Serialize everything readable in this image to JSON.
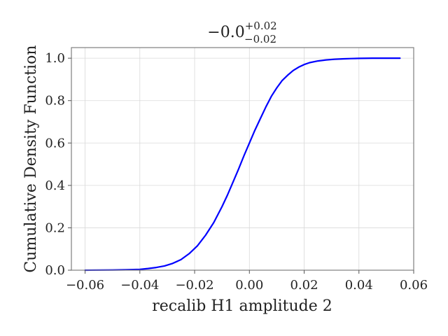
{
  "chart_data": {
    "type": "line",
    "title": {
      "base": "−0.0",
      "sup": "+0.02",
      "sub": "−0.02"
    },
    "xlabel": "recalib H1 amplitude 2",
    "ylabel": "Cumulative Density Function",
    "xlim": [
      -0.065,
      0.06
    ],
    "ylim": [
      0.0,
      1.05
    ],
    "grid": true,
    "x_ticks": [
      -0.06,
      -0.04,
      -0.02,
      0.0,
      0.02,
      0.04,
      0.06
    ],
    "x_tick_labels": [
      "−0.06",
      "−0.04",
      "−0.02",
      "0.00",
      "0.02",
      "0.04",
      "0.06"
    ],
    "y_ticks": [
      0.0,
      0.2,
      0.4,
      0.6,
      0.8,
      1.0
    ],
    "y_tick_labels": [
      "0.0",
      "0.2",
      "0.4",
      "0.6",
      "0.8",
      "1.0"
    ],
    "series": [
      {
        "color": "#0000ff",
        "x": [
          -0.06,
          -0.05,
          -0.045,
          -0.04,
          -0.037,
          -0.034,
          -0.031,
          -0.028,
          -0.025,
          -0.022,
          -0.019,
          -0.016,
          -0.013,
          -0.01,
          -0.008,
          -0.006,
          -0.004,
          -0.002,
          0.0,
          0.002,
          0.004,
          0.006,
          0.008,
          0.01,
          0.012,
          0.014,
          0.016,
          0.018,
          0.02,
          0.022,
          0.025,
          0.028,
          0.031,
          0.034,
          0.037,
          0.04,
          0.045,
          0.05,
          0.055
        ],
        "y": [
          0.0,
          0.001,
          0.002,
          0.004,
          0.008,
          0.013,
          0.02,
          0.032,
          0.05,
          0.078,
          0.115,
          0.165,
          0.225,
          0.3,
          0.355,
          0.415,
          0.475,
          0.54,
          0.6,
          0.66,
          0.715,
          0.77,
          0.82,
          0.86,
          0.895,
          0.92,
          0.942,
          0.958,
          0.97,
          0.979,
          0.987,
          0.992,
          0.995,
          0.997,
          0.998,
          0.999,
          1.0,
          1.0,
          1.0
        ]
      }
    ]
  }
}
